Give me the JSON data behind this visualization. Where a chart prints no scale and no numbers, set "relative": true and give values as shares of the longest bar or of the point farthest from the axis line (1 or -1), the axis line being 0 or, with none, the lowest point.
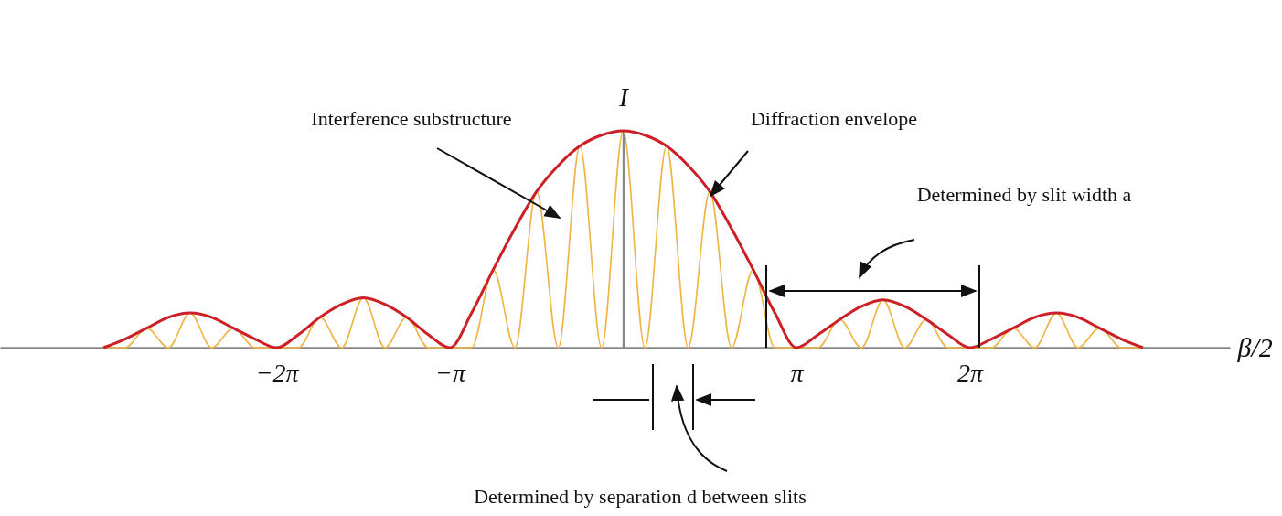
{
  "chart_data": {
    "type": "line",
    "relative": true,
    "xlabel": "β/2",
    "ylabel": "I",
    "xlim": [
      -11.3,
      11
    ],
    "xticks": [
      {
        "value": -6.283,
        "label": "−2π"
      },
      {
        "value": -3.142,
        "label": "−π"
      },
      {
        "value": 3.142,
        "label": "π"
      },
      {
        "value": 6.283,
        "label": "2π"
      }
    ],
    "series": [
      {
        "color": "#f0b445",
        "x": [
          -9.425,
          -9.032,
          -8.639,
          -8.247,
          -7.854,
          -7.461,
          -7.069,
          -6.676,
          -6.283,
          -5.89,
          -5.498,
          -5.105,
          -4.712,
          -4.32,
          -3.927,
          -3.534,
          -3.142,
          -2.749,
          -2.356,
          -1.963,
          -1.571,
          -1.178,
          -0.785,
          -0.393,
          0,
          0.393,
          0.785,
          1.178,
          1.571,
          1.963,
          2.356,
          2.749,
          3.142,
          3.534,
          3.927,
          4.32,
          4.712,
          5.105,
          5.498,
          5.89,
          6.283,
          6.676,
          7.069,
          7.461,
          7.854,
          8.247,
          8.639,
          9.032,
          9.425
        ],
        "values": [
          0,
          0,
          0.09,
          0,
          0.16,
          0,
          0.09,
          0,
          0,
          0,
          0.14,
          0,
          0.23,
          0,
          0.14,
          0,
          0,
          0,
          0.36,
          0,
          0.72,
          0,
          0.93,
          0,
          1,
          0,
          0.93,
          0,
          0.72,
          0,
          0.36,
          0,
          0,
          0,
          0.13,
          0,
          0.22,
          0,
          0.13,
          0,
          0,
          0,
          0.09,
          0,
          0.16,
          0,
          0.09,
          0,
          0
        ]
      },
      {
        "color": "#cc1f26",
        "x": [
          -9.425,
          -9.032,
          -8.639,
          -8.247,
          -7.854,
          -7.461,
          -7.069,
          -6.676,
          -6.283,
          -5.89,
          -5.498,
          -5.105,
          -4.712,
          -4.32,
          -3.927,
          -3.534,
          -3.142,
          -2.749,
          -2.356,
          -1.963,
          -1.571,
          -1.178,
          -0.785,
          -0.393,
          0,
          0.393,
          0.785,
          1.178,
          1.571,
          1.963,
          2.356,
          2.749,
          3.142,
          3.534,
          3.927,
          4.32,
          4.712,
          5.105,
          5.498,
          5.89,
          6.283,
          6.676,
          7.069,
          7.461,
          7.854,
          8.247,
          8.639,
          9.032,
          9.425
        ],
        "values": [
          0,
          0.04,
          0.09,
          0.14,
          0.16,
          0.14,
          0.09,
          0.04,
          0,
          0.06,
          0.14,
          0.2,
          0.23,
          0.2,
          0.14,
          0.06,
          0,
          0.16,
          0.36,
          0.55,
          0.72,
          0.84,
          0.93,
          0.98,
          1,
          0.98,
          0.93,
          0.84,
          0.72,
          0.55,
          0.36,
          0.16,
          0,
          0.06,
          0.13,
          0.19,
          0.22,
          0.19,
          0.13,
          0.06,
          0,
          0.04,
          0.09,
          0.14,
          0.16,
          0.14,
          0.09,
          0.04,
          0
        ]
      }
    ],
    "annotations": [
      "Interference substructure",
      "Diffraction envelope",
      "Determined by slit width a",
      "Determined by separation d between slits"
    ]
  }
}
